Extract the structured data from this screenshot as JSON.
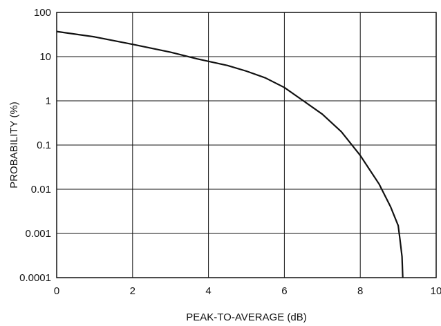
{
  "chart_data": {
    "type": "line",
    "title": "",
    "xlabel": "PEAK-TO-AVERAGE (dB)",
    "ylabel": "PROBABILITY (%)",
    "xlim": [
      0,
      10
    ],
    "ylim": [
      0.0001,
      100
    ],
    "yscale": "log",
    "grid": true,
    "x_ticks": [
      0,
      2,
      4,
      6,
      8,
      10
    ],
    "x_tick_labels": [
      "0",
      "2",
      "4",
      "6",
      "8",
      "10"
    ],
    "y_ticks": [
      100,
      10,
      1,
      0.1,
      0.01,
      0.001,
      0.0001
    ],
    "y_tick_labels": [
      "100",
      "10",
      "1",
      "0.1",
      "0.01",
      "0.001",
      "0.0001"
    ],
    "colors": {
      "line": "#111111",
      "grid": "#111111",
      "background": "#ffffff"
    },
    "series": [
      {
        "x": [
          0,
          1,
          2,
          3,
          3.7,
          4.5,
          5,
          5.5,
          6,
          6.5,
          7,
          7.5,
          8,
          8.5,
          8.8,
          9,
          9.05,
          9.1,
          9.12
        ],
        "y": [
          37,
          28,
          19,
          12.6,
          8.9,
          6.3,
          4.7,
          3.3,
          2,
          1,
          0.5,
          0.2,
          0.058,
          0.013,
          0.004,
          0.0015,
          0.0007,
          0.0003,
          0.0001
        ]
      }
    ]
  }
}
